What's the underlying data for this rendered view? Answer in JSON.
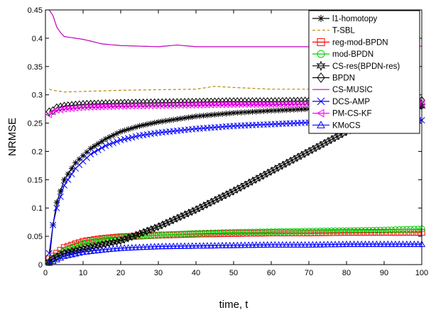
{
  "chart_data": {
    "type": "line",
    "title": "",
    "xlabel": "time, t",
    "ylabel": "NRMSE",
    "xlim": [
      0,
      100
    ],
    "ylim": [
      0,
      0.45
    ],
    "xticks": [
      0,
      10,
      20,
      30,
      40,
      50,
      60,
      70,
      80,
      90,
      100
    ],
    "yticks": [
      0,
      0.05,
      0.1,
      0.15,
      0.2,
      0.25,
      0.3,
      0.35,
      0.4,
      0.45
    ],
    "xtick_labels": [
      "0",
      "10",
      "20",
      "30",
      "40",
      "50",
      "60",
      "70",
      "80",
      "90",
      "100"
    ],
    "ytick_labels": [
      "0",
      "0.05",
      "0.1",
      "0.15",
      "0.2",
      "0.25",
      "0.3",
      "0.35",
      "0.4",
      "0.45"
    ],
    "legend_position": "top-right",
    "grid": false,
    "series": [
      {
        "name": "l1-homotopy",
        "color": "#000000",
        "marker": "asterisk",
        "dash": "solid",
        "x": [
          1,
          2,
          3,
          5,
          8,
          12,
          16,
          20,
          25,
          30,
          40,
          50,
          60,
          70,
          80,
          90,
          100
        ],
        "y": [
          0.005,
          0.07,
          0.11,
          0.15,
          0.18,
          0.205,
          0.222,
          0.235,
          0.245,
          0.252,
          0.262,
          0.268,
          0.272,
          0.275,
          0.277,
          0.278,
          0.28
        ]
      },
      {
        "name": "T-SBL",
        "color": "#b8860b",
        "marker": "none",
        "dash": "dashed",
        "x": [
          1,
          2,
          5,
          10,
          15,
          20,
          30,
          40,
          45,
          50,
          60,
          70,
          80,
          90,
          100
        ],
        "y": [
          0.31,
          0.308,
          0.305,
          0.306,
          0.307,
          0.308,
          0.309,
          0.31,
          0.315,
          0.313,
          0.31,
          0.31,
          0.312,
          0.313,
          0.312
        ]
      },
      {
        "name": "reg-mod-BPDN",
        "color": "#ff0000",
        "marker": "square",
        "dash": "solid",
        "x": [
          1,
          2,
          5,
          10,
          15,
          20,
          30,
          40,
          50,
          60,
          70,
          80,
          90,
          100
        ],
        "y": [
          0.01,
          0.015,
          0.03,
          0.041,
          0.046,
          0.049,
          0.052,
          0.054,
          0.055,
          0.056,
          0.056,
          0.057,
          0.057,
          0.057
        ]
      },
      {
        "name": "mod-BPDN",
        "color": "#00cc00",
        "marker": "circle",
        "dash": "solid",
        "x": [
          1,
          2,
          5,
          10,
          15,
          20,
          30,
          40,
          50,
          60,
          70,
          80,
          90,
          100
        ],
        "y": [
          0.005,
          0.01,
          0.025,
          0.038,
          0.044,
          0.048,
          0.052,
          0.055,
          0.057,
          0.058,
          0.059,
          0.06,
          0.061,
          0.063
        ]
      },
      {
        "name": "CS-res(BPDN-res)",
        "color": "#000000",
        "marker": "hexagram",
        "dash": "solid",
        "x": [
          1,
          2,
          5,
          10,
          15,
          20,
          30,
          40,
          50,
          60,
          70,
          80,
          90,
          100
        ],
        "y": [
          0.005,
          0.01,
          0.02,
          0.028,
          0.035,
          0.042,
          0.067,
          0.097,
          0.13,
          0.165,
          0.2,
          0.235,
          0.265,
          0.28
        ]
      },
      {
        "name": "BPDN",
        "color": "#000000",
        "marker": "diamond",
        "dash": "solid",
        "x": [
          1,
          2,
          3,
          5,
          10,
          20,
          30,
          40,
          50,
          60,
          70,
          80,
          90,
          100
        ],
        "y": [
          0.27,
          0.272,
          0.277,
          0.28,
          0.283,
          0.285,
          0.286,
          0.287,
          0.288,
          0.288,
          0.289,
          0.289,
          0.289,
          0.29
        ]
      },
      {
        "name": "CS-MUSIC",
        "color": "#c000c0",
        "marker": "none",
        "dash": "solid",
        "x": [
          1,
          2,
          3,
          4,
          5,
          8,
          10,
          12,
          15,
          20,
          25,
          30,
          35,
          40,
          50,
          60,
          70,
          80,
          90,
          100
        ],
        "y": [
          0.45,
          0.44,
          0.42,
          0.41,
          0.403,
          0.4,
          0.398,
          0.395,
          0.39,
          0.387,
          0.386,
          0.385,
          0.388,
          0.385,
          0.385,
          0.385,
          0.385,
          0.386,
          0.386,
          0.386
        ]
      },
      {
        "name": "DCS-AMP",
        "color": "#0000ff",
        "marker": "x",
        "dash": "solid",
        "x": [
          1,
          2,
          3,
          5,
          8,
          12,
          16,
          20,
          25,
          30,
          40,
          50,
          60,
          70,
          80,
          90,
          100
        ],
        "y": [
          0.02,
          0.07,
          0.1,
          0.14,
          0.17,
          0.195,
          0.21,
          0.22,
          0.228,
          0.233,
          0.24,
          0.245,
          0.248,
          0.251,
          0.253,
          0.254,
          0.255
        ]
      },
      {
        "name": "PM-CS-KF",
        "color": "#ff00ff",
        "marker": "triangle-left",
        "dash": "solid",
        "x": [
          1,
          2,
          3,
          5,
          10,
          20,
          30,
          40,
          50,
          60,
          70,
          80,
          90,
          100
        ],
        "y": [
          0.265,
          0.27,
          0.273,
          0.275,
          0.278,
          0.28,
          0.281,
          0.282,
          0.283,
          0.283,
          0.284,
          0.284,
          0.285,
          0.285
        ]
      },
      {
        "name": "KMoCS",
        "color": "#0000ff",
        "marker": "triangle-up",
        "dash": "solid",
        "x": [
          1,
          2,
          5,
          10,
          15,
          20,
          30,
          40,
          50,
          60,
          70,
          80,
          90,
          100
        ],
        "y": [
          0.003,
          0.006,
          0.015,
          0.022,
          0.026,
          0.029,
          0.032,
          0.033,
          0.034,
          0.035,
          0.035,
          0.036,
          0.036,
          0.036
        ]
      }
    ]
  }
}
